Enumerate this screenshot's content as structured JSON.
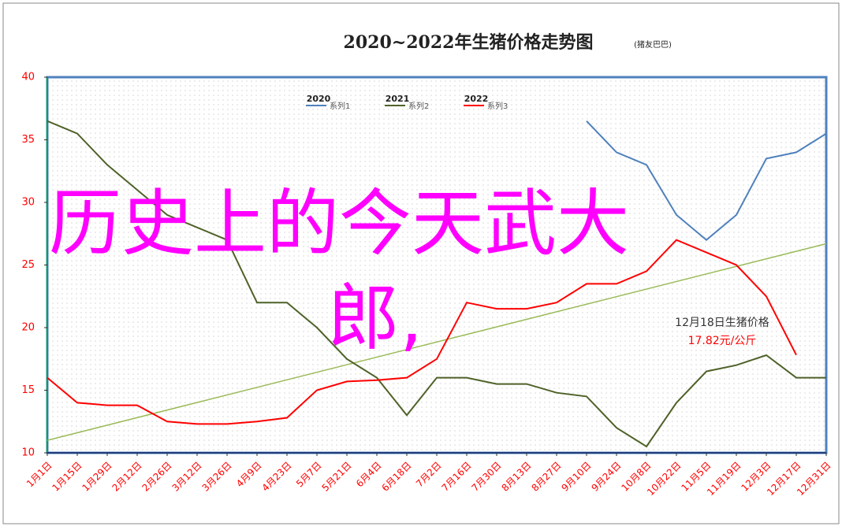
{
  "chart_data": {
    "type": "line",
    "title": "2020~2022年生猪价格走势图",
    "subtitle": "(猪友巴巴)",
    "categories": [
      "1月1日",
      "1月15日",
      "1月29日",
      "2月12日",
      "2月26日",
      "3月12日",
      "3月26日",
      "4月9日",
      "4月23日",
      "5月7日",
      "5月21日",
      "6月4日",
      "6月18日",
      "7月2日",
      "7月16日",
      "7月30日",
      "8月13日",
      "8月27日",
      "9月10日",
      "9月24日",
      "10月8日",
      "10月22日",
      "11月5日",
      "11月19日",
      "12月3日",
      "12月17日",
      "12月31日"
    ],
    "series": [
      {
        "name": "2020",
        "legend_label": "系列1",
        "color": "#4f81bd",
        "values": [
          null,
          null,
          null,
          null,
          null,
          null,
          null,
          null,
          null,
          null,
          null,
          null,
          null,
          null,
          null,
          null,
          null,
          null,
          36.5,
          34,
          33,
          29,
          27,
          29,
          33.5,
          34,
          35.5
        ]
      },
      {
        "name": "2021",
        "legend_label": "系列2",
        "color": "#4f6228",
        "values": [
          36.5,
          35.5,
          33,
          31,
          29,
          28,
          27,
          22,
          22,
          20,
          17.5,
          16,
          13,
          16,
          16,
          15.5,
          15.5,
          14.8,
          14.5,
          12,
          10.5,
          14,
          16.5,
          17,
          17.8,
          16,
          16
        ]
      },
      {
        "name": "2022",
        "legend_label": "系列3",
        "color": "#ff0000",
        "values": [
          16,
          14,
          13.8,
          13.8,
          12.5,
          12.3,
          12.3,
          12.5,
          12.8,
          15,
          15.7,
          15.8,
          16,
          17.5,
          22,
          21.5,
          21.5,
          22,
          23.5,
          23.5,
          24.5,
          27,
          26,
          25,
          22.5,
          17.82,
          null
        ]
      }
    ],
    "trendline": {
      "color": "#9bbb59",
      "values": [
        11,
        26.7
      ]
    },
    "ylim": [
      10,
      40
    ],
    "yticks": [
      10,
      15,
      20,
      25,
      30,
      35,
      40
    ],
    "grid": true,
    "annotation": {
      "title": "12月18日生猪价格",
      "value": "17.82元/公斤"
    },
    "overlay_text": [
      "历史上的今天武大",
      "郎,"
    ]
  }
}
